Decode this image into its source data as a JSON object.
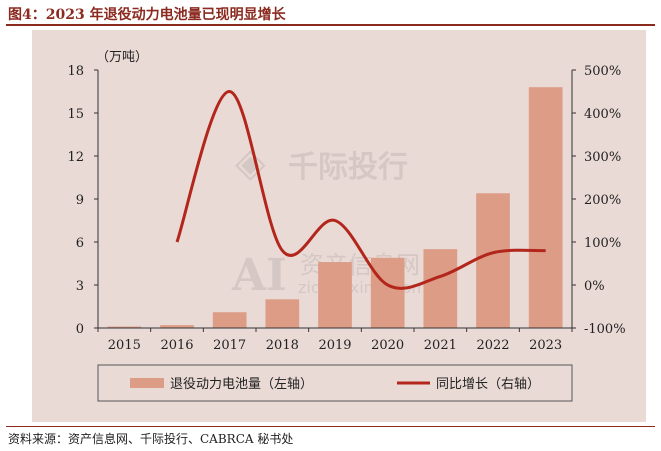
{
  "title": "图4：2023 年退役动力电池量已现明显增长",
  "source": "资料来源：资产信息网、千际投行、CABRCA 秘书处",
  "watermarks": {
    "brand1": "千际投行",
    "brand2": "资产信息网",
    "brand2_url": "zichanxinxi.com",
    "brand2_logo": "AI"
  },
  "colors": {
    "bar": "#dc9c86",
    "line": "#b3261c",
    "panel": "#eadad6",
    "title": "#8b2a1f"
  },
  "chart_data": {
    "type": "bar+line",
    "categories": [
      "2015",
      "2016",
      "2017",
      "2018",
      "2019",
      "2020",
      "2021",
      "2022",
      "2023"
    ],
    "series": [
      {
        "name": "退役动力电池量（左轴）",
        "type": "bar",
        "axis": "left",
        "values": [
          0.1,
          0.2,
          1.1,
          2.0,
          4.6,
          4.9,
          5.5,
          9.4,
          16.8
        ]
      },
      {
        "name": "同比增长（右轴）",
        "type": "line",
        "axis": "right",
        "values": [
          null,
          100,
          450,
          80,
          150,
          0,
          20,
          75,
          80
        ]
      }
    ],
    "ylabel_left": "（万吨）",
    "yleft_ticks": [
      "0",
      "3",
      "6",
      "9",
      "12",
      "15",
      "18"
    ],
    "yright_ticks": [
      "-100%",
      "0%",
      "100%",
      "200%",
      "300%",
      "400%",
      "500%"
    ],
    "ylim_left": [
      0,
      18
    ],
    "ylim_right": [
      -100,
      500
    ],
    "grid": false,
    "legend": "bottom"
  }
}
